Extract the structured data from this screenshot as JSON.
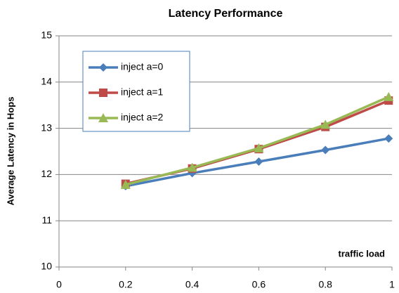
{
  "chart_data": {
    "type": "line",
    "title": "Latency Performance",
    "y_label": "Average Latency in Hops",
    "annotation": "traffic load",
    "x": [
      0.2,
      0.4,
      0.6,
      0.8,
      0.99
    ],
    "series": [
      {
        "name": "inject a=0",
        "color": "#4a7ebb",
        "marker": "diamond",
        "values": [
          11.75,
          12.03,
          12.28,
          12.53,
          12.78
        ]
      },
      {
        "name": "inject a=1",
        "color": "#be4b48",
        "marker": "square",
        "values": [
          11.8,
          12.13,
          12.55,
          13.03,
          13.6
        ]
      },
      {
        "name": "inject a=2",
        "color": "#98b954",
        "marker": "triangle",
        "values": [
          11.78,
          12.15,
          12.57,
          13.08,
          13.68
        ]
      }
    ],
    "xlim": [
      0,
      1
    ],
    "xticks": [
      0,
      0.2,
      0.4,
      0.6,
      0.8,
      1
    ],
    "ylim": [
      10,
      15
    ],
    "yticks": [
      10,
      11,
      12,
      13,
      14,
      15
    ],
    "grid": true,
    "legend": "upper left"
  }
}
